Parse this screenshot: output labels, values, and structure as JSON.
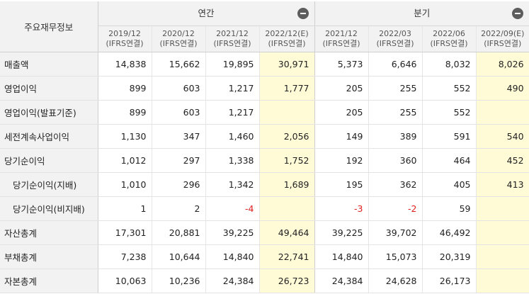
{
  "header": {
    "corner_label": "주요재무정보",
    "annual_label": "연간",
    "quarterly_label": "분기"
  },
  "columns": [
    {
      "year": "2019/12",
      "basis": "(IFRS연결)"
    },
    {
      "year": "2020/12",
      "basis": "(IFRS연결)"
    },
    {
      "year": "2021/12",
      "basis": "(IFRS연결)"
    },
    {
      "year": "2022/12(E)",
      "basis": "(IFRS연결)"
    },
    {
      "year": "2021/12",
      "basis": "(IFRS연결)"
    },
    {
      "year": "2022/03",
      "basis": "(IFRS연결)"
    },
    {
      "year": "2022/06",
      "basis": "(IFRS연결)"
    },
    {
      "year": "2022/09(E)",
      "basis": "(IFRS연결)"
    }
  ],
  "rows": [
    {
      "label": "매출액",
      "values": [
        "14,838",
        "15,662",
        "19,895",
        "30,971",
        "5,373",
        "6,646",
        "8,032",
        "8,026"
      ]
    },
    {
      "label": "영업이익",
      "values": [
        "899",
        "603",
        "1,217",
        "1,777",
        "205",
        "255",
        "552",
        "490"
      ]
    },
    {
      "label": "영업이익(발표기준)",
      "values": [
        "899",
        "603",
        "1,217",
        "",
        "205",
        "255",
        "552",
        ""
      ]
    },
    {
      "label": "세전계속사업이익",
      "values": [
        "1,130",
        "347",
        "1,460",
        "2,056",
        "149",
        "389",
        "591",
        "540"
      ]
    },
    {
      "label": "당기순이익",
      "values": [
        "1,012",
        "297",
        "1,338",
        "1,752",
        "192",
        "360",
        "464",
        "452"
      ]
    },
    {
      "label": "당기순이익(지배)",
      "values": [
        "1,010",
        "296",
        "1,342",
        "1,689",
        "195",
        "362",
        "405",
        "413"
      ]
    },
    {
      "label": "당기순이익(비지배)",
      "values": [
        "1",
        "2",
        "-4",
        "",
        "-3",
        "-2",
        "59",
        ""
      ]
    },
    {
      "label": "자산총계",
      "values": [
        "17,301",
        "20,881",
        "39,225",
        "49,464",
        "39,225",
        "39,702",
        "46,492",
        ""
      ]
    },
    {
      "label": "부채총계",
      "values": [
        "7,238",
        "10,644",
        "14,840",
        "22,741",
        "14,840",
        "15,073",
        "20,319",
        ""
      ]
    },
    {
      "label": "자본총계",
      "values": [
        "10,063",
        "10,236",
        "24,384",
        "26,723",
        "24,384",
        "24,628",
        "26,173",
        ""
      ]
    }
  ],
  "colors": {
    "header_bg": "#f2f2f2",
    "estimate_bg": "#fffbd6",
    "negative": "#e02020"
  }
}
